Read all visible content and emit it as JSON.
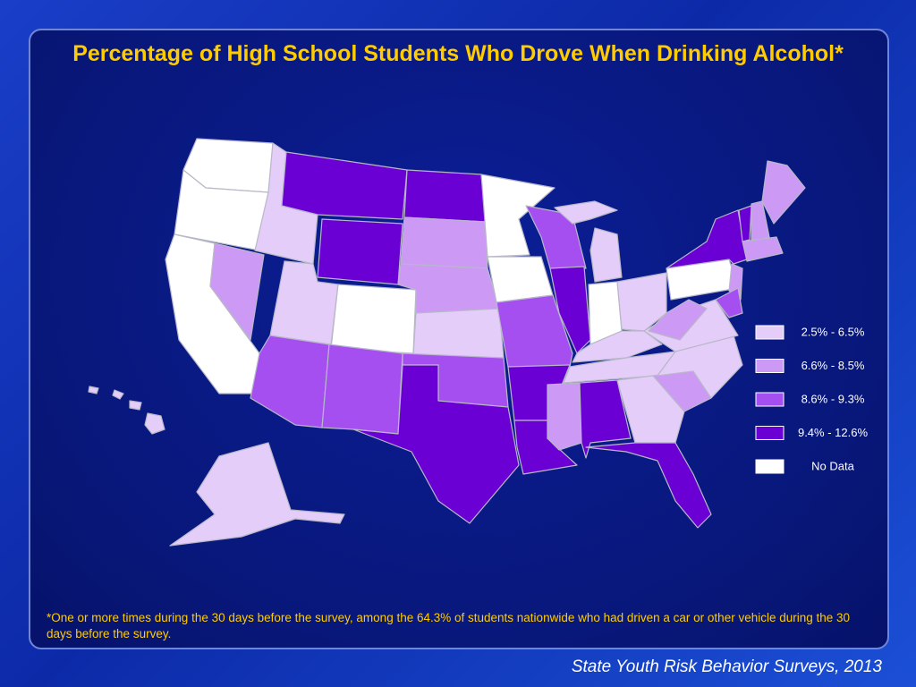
{
  "title": "Percentage of High School Students Who Drove When Drinking Alcohol*",
  "legend": [
    {
      "label": "2.5% - 6.5%",
      "color": "#e4cdf8"
    },
    {
      "label": "6.6% - 8.5%",
      "color": "#cc99f5"
    },
    {
      "label": "8.6% - 9.3%",
      "color": "#a64ff0"
    },
    {
      "label": "9.4% - 12.6%",
      "color": "#6a00d4"
    },
    {
      "label": "No Data",
      "color": "#ffffff"
    }
  ],
  "footnote": "*One or more times during the 30 days before the survey, among the 64.3% of students nationwide who had driven a car or other vehicle during the 30 days before the survey.",
  "source": "State Youth Risk Behavior Surveys, 2013"
}
